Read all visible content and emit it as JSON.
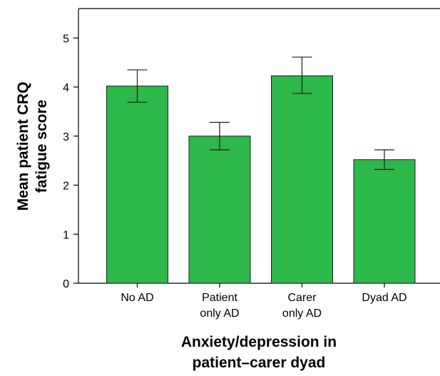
{
  "chart_data": {
    "type": "bar",
    "categories": [
      [
        "No AD"
      ],
      [
        "Patient",
        "only AD"
      ],
      [
        "Carer",
        "only AD"
      ],
      [
        "Dyad AD"
      ]
    ],
    "values": [
      4.02,
      3.0,
      4.23,
      2.52
    ],
    "error_bars": [
      {
        "low": 3.69,
        "high": 4.35
      },
      {
        "low": 2.72,
        "high": 3.28
      },
      {
        "low": 3.87,
        "high": 4.61
      },
      {
        "low": 2.32,
        "high": 2.72
      }
    ],
    "title": "",
    "xlabel": [
      "Anxiety/depression in",
      "patient–carer dyad"
    ],
    "ylabel": [
      "Mean patient CRQ",
      "fatigue score"
    ],
    "ylim": [
      0,
      5.6
    ],
    "yticks": [
      0,
      1,
      2,
      3,
      4,
      5
    ],
    "grid": false,
    "colors": {
      "bar": "#2db84a",
      "bar_edge": "#1f1f1f",
      "axis": "#000000"
    }
  }
}
